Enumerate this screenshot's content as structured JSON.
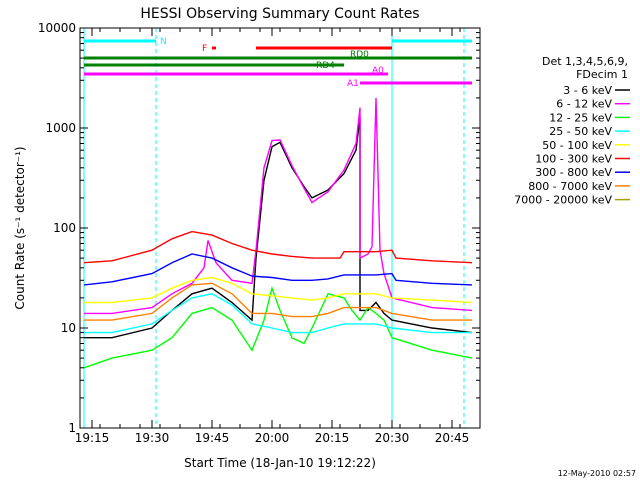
{
  "chart_data": {
    "type": "line",
    "title": "HESSI Observing Summary Count Rates",
    "xlabel": "Start Time (18-Jan-10 19:12:22)",
    "ylabel": "Count Rate (s⁻¹ detector⁻¹)",
    "yscale": "log",
    "ylim": [
      1,
      10000
    ],
    "xlim": [
      "19:12",
      "20:52"
    ],
    "x_ticks": [
      "19:15",
      "19:30",
      "19:45",
      "20:00",
      "20:15",
      "20:30",
      "20:45"
    ],
    "y_ticks": [
      "1",
      "10",
      "100",
      "1000",
      "10000"
    ],
    "grid": false,
    "date_stamp": "12-May-2010 02:57",
    "legend_title": [
      "Det 1,3,4,5,6,9,",
      "FDecim 1"
    ],
    "legend_position": "right",
    "series": [
      {
        "name": "3 - 6 keV",
        "color": "#000000",
        "x": [
          "19:13",
          "19:20",
          "19:30",
          "19:35",
          "19:40",
          "19:45",
          "19:50",
          "19:55",
          "19:56",
          "19:58",
          "20:00",
          "20:02",
          "20:05",
          "20:08",
          "20:10",
          "20:14",
          "20:18",
          "20:21",
          "20:22",
          "20:22",
          "20:24",
          "20:26",
          "20:28",
          "20:30",
          "20:40",
          "20:50"
        ],
        "values": [
          8,
          8,
          10,
          15,
          22,
          25,
          18,
          12,
          50,
          300,
          650,
          720,
          400,
          260,
          200,
          240,
          350,
          600,
          1300,
          15,
          15,
          18,
          14,
          12,
          10,
          9
        ]
      },
      {
        "name": "6 - 12 keV",
        "color": "#ff00ff",
        "x": [
          "19:13",
          "19:20",
          "19:30",
          "19:35",
          "19:40",
          "19:43",
          "19:44",
          "19:46",
          "19:50",
          "19:55",
          "19:56",
          "19:58",
          "20:00",
          "20:02",
          "20:05",
          "20:08",
          "20:10",
          "20:14",
          "20:18",
          "20:21",
          "20:22",
          "20:22",
          "20:24",
          "20:25",
          "20:26",
          "20:27",
          "20:28",
          "20:30",
          "20:40",
          "20:50"
        ],
        "values": [
          14,
          14,
          16,
          22,
          28,
          40,
          75,
          45,
          30,
          28,
          60,
          400,
          750,
          760,
          420,
          250,
          180,
          230,
          380,
          700,
          1600,
          50,
          55,
          65,
          2000,
          60,
          35,
          20,
          16,
          15
        ]
      },
      {
        "name": "12 - 25 keV",
        "color": "#00ff00",
        "x": [
          "19:13",
          "19:20",
          "19:30",
          "19:35",
          "19:40",
          "19:45",
          "19:50",
          "19:55",
          "19:58",
          "20:00",
          "20:02",
          "20:05",
          "20:08",
          "20:10",
          "20:14",
          "20:18",
          "20:20",
          "20:22",
          "20:24",
          "20:26",
          "20:28",
          "20:30",
          "20:40",
          "20:50"
        ],
        "values": [
          4,
          5,
          6,
          8,
          14,
          16,
          12,
          6,
          12,
          25,
          15,
          8,
          7,
          10,
          22,
          20,
          15,
          12,
          16,
          14,
          12,
          8,
          6,
          5
        ]
      },
      {
        "name": "25 - 50 keV",
        "color": "#00ffff",
        "x": [
          "19:13",
          "19:20",
          "19:30",
          "19:35",
          "19:40",
          "19:45",
          "19:50",
          "19:55",
          "20:00",
          "20:05",
          "20:10",
          "20:14",
          "20:18",
          "20:22",
          "20:26",
          "20:30",
          "20:40",
          "20:50"
        ],
        "values": [
          9,
          9,
          11,
          15,
          20,
          22,
          17,
          11,
          10,
          9,
          9,
          10,
          11,
          11,
          11,
          10,
          9,
          9
        ]
      },
      {
        "name": "50 - 100 keV",
        "color": "#ffff00",
        "x": [
          "19:13",
          "19:20",
          "19:30",
          "19:35",
          "19:40",
          "19:45",
          "19:50",
          "19:55",
          "20:00",
          "20:05",
          "20:10",
          "20:14",
          "20:18",
          "20:22",
          "20:26",
          "20:30",
          "20:40",
          "20:50"
        ],
        "values": [
          18,
          18,
          20,
          25,
          30,
          32,
          28,
          22,
          21,
          20,
          19,
          20,
          22,
          22,
          22,
          20,
          19,
          18
        ]
      },
      {
        "name": "100 - 300 keV",
        "color": "#ff0000",
        "x": [
          "19:13",
          "19:20",
          "19:30",
          "19:35",
          "19:40",
          "19:45",
          "19:50",
          "19:55",
          "20:00",
          "20:05",
          "20:10",
          "20:14",
          "20:17",
          "20:18",
          "20:22",
          "20:26",
          "20:30",
          "20:31",
          "20:40",
          "20:50"
        ],
        "values": [
          45,
          47,
          60,
          78,
          92,
          85,
          70,
          60,
          55,
          52,
          50,
          50,
          50,
          58,
          58,
          58,
          60,
          50,
          47,
          45
        ]
      },
      {
        "name": "300 - 800 keV",
        "color": "#0000ff",
        "x": [
          "19:13",
          "19:20",
          "19:30",
          "19:35",
          "19:40",
          "19:45",
          "19:50",
          "19:55",
          "20:00",
          "20:05",
          "20:10",
          "20:14",
          "20:18",
          "20:22",
          "20:26",
          "20:30",
          "20:31",
          "20:40",
          "20:50"
        ],
        "values": [
          27,
          29,
          35,
          45,
          55,
          50,
          40,
          33,
          32,
          30,
          30,
          31,
          34,
          34,
          34,
          35,
          30,
          28,
          27
        ]
      },
      {
        "name": "800 - 7000 keV",
        "color": "#ff8000",
        "x": [
          "19:13",
          "19:20",
          "19:30",
          "19:35",
          "19:40",
          "19:45",
          "19:50",
          "19:55",
          "20:00",
          "20:05",
          "20:10",
          "20:14",
          "20:18",
          "20:22",
          "20:26",
          "20:30",
          "20:40",
          "20:50"
        ],
        "values": [
          12,
          12,
          14,
          20,
          27,
          28,
          22,
          14,
          14,
          13,
          13,
          14,
          16,
          16,
          16,
          14,
          12,
          12
        ]
      },
      {
        "name": "7000 - 20000 keV",
        "color": "#a0a000",
        "x": [],
        "values": []
      }
    ],
    "flag_bars": [
      {
        "label": "N",
        "color": "#00ffff",
        "segments": [
          [
            "19:13",
            "19:31"
          ],
          [
            "20:30",
            "20:50"
          ]
        ]
      },
      {
        "label": "F",
        "color": "#ff0000",
        "segments": [
          [
            "19:45",
            "19:46"
          ],
          [
            "19:56",
            "20:30"
          ]
        ]
      },
      {
        "label": "RD0",
        "color": "#008000",
        "segments": [
          [
            "19:13",
            "20:50"
          ]
        ]
      },
      {
        "label": "RD4",
        "color": "#008000",
        "segments": [
          [
            "19:13",
            "20:18"
          ]
        ]
      },
      {
        "label": "A0",
        "color": "#ff00ff",
        "segments": [
          [
            "19:13",
            "20:29"
          ]
        ]
      },
      {
        "label": "A1",
        "color": "#ff00ff",
        "segments": [
          [
            "20:22",
            "20:50"
          ]
        ]
      }
    ],
    "vertical_lines": [
      {
        "x": "19:13",
        "color": "#00ffff",
        "style": "solid"
      },
      {
        "x": "19:31",
        "color": "#00ffff",
        "style": "dashed"
      },
      {
        "x": "20:30",
        "color": "#00ffff",
        "style": "solid"
      },
      {
        "x": "20:48",
        "color": "#00ffff",
        "style": "dashed"
      }
    ]
  }
}
